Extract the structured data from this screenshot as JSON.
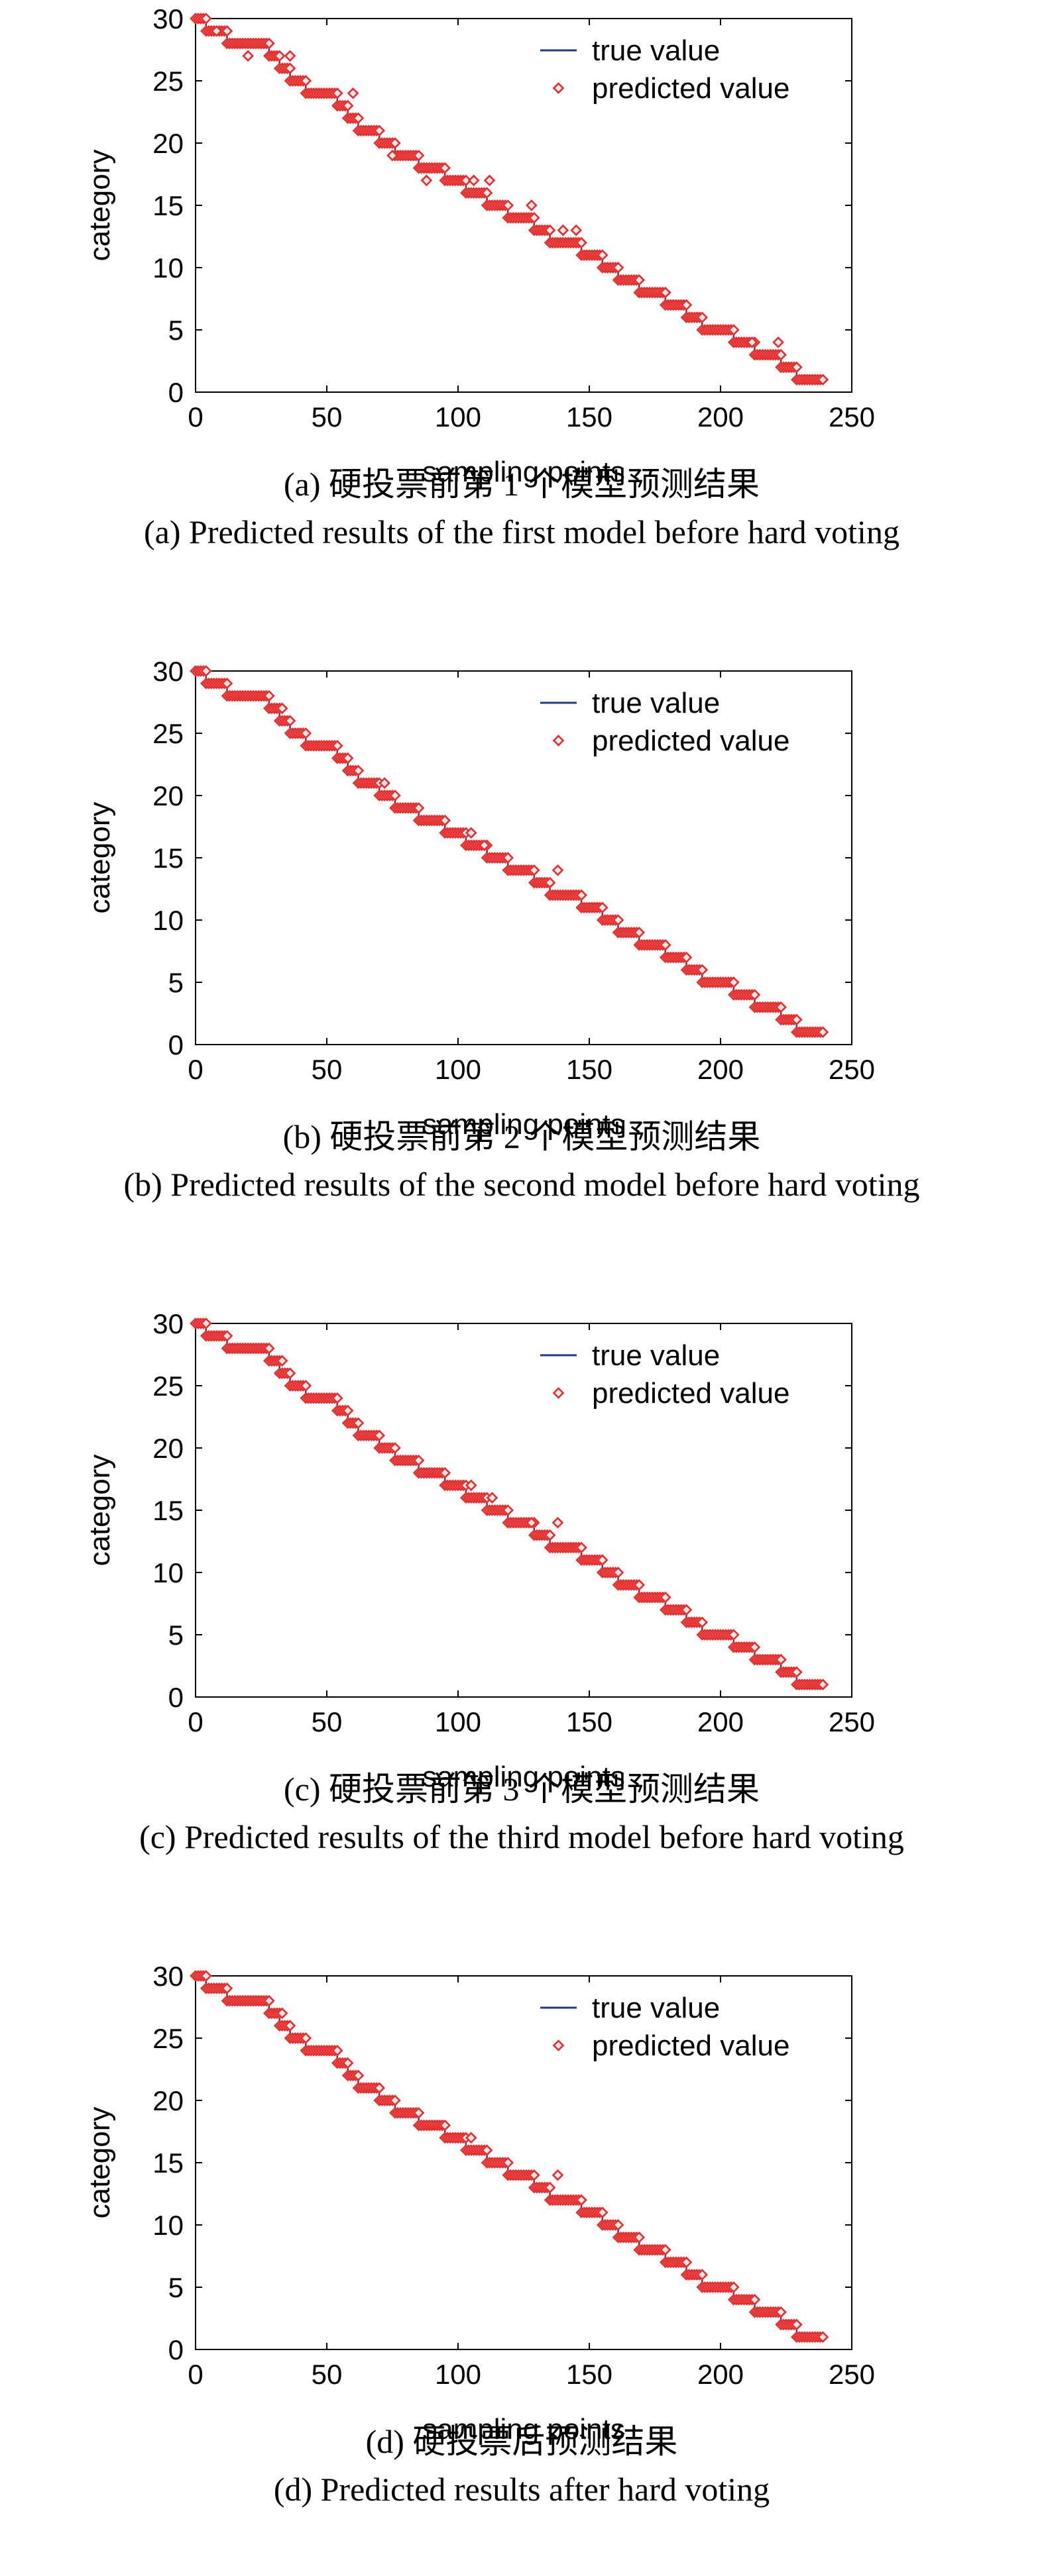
{
  "chart_data": [
    {
      "type": "scatter",
      "xlabel": "sampling points",
      "ylabel": "category",
      "xlim": [
        0,
        250
      ],
      "ylim": [
        0,
        30
      ],
      "xticks": [
        0,
        50,
        100,
        150,
        200,
        250
      ],
      "yticks": [
        0,
        5,
        10,
        15,
        20,
        25,
        30
      ],
      "legend_position": "top-right",
      "caption_cn": "(a) 硬投票前第 1 个模型预测结果",
      "caption_en": "(a) Predicted results of the first model before hard voting",
      "series": [
        {
          "name": "true value",
          "kind": "line",
          "color": "#1f3a8a"
        },
        {
          "name": "predicted value",
          "kind": "marker",
          "marker": "diamond",
          "color": "#e52d2d"
        }
      ],
      "true_value": {
        "segments": [
          [
            0,
            30,
            4
          ],
          [
            4,
            29,
            8
          ],
          [
            12,
            28,
            16
          ],
          [
            28,
            27,
            4
          ],
          [
            32,
            26,
            4
          ],
          [
            36,
            25,
            6
          ],
          [
            42,
            24,
            12
          ],
          [
            54,
            23,
            4
          ],
          [
            58,
            22,
            4
          ],
          [
            62,
            21,
            8
          ],
          [
            70,
            20,
            6
          ],
          [
            76,
            19,
            9
          ],
          [
            85,
            18,
            10
          ],
          [
            95,
            17,
            8
          ],
          [
            103,
            16,
            8
          ],
          [
            111,
            15,
            8
          ],
          [
            119,
            14,
            10
          ],
          [
            129,
            13,
            6
          ],
          [
            135,
            12,
            12
          ],
          [
            147,
            11,
            8
          ],
          [
            155,
            10,
            6
          ],
          [
            161,
            9,
            8
          ],
          [
            169,
            8,
            10
          ],
          [
            179,
            7,
            8
          ],
          [
            187,
            6,
            6
          ],
          [
            193,
            5,
            12
          ],
          [
            205,
            4,
            8
          ],
          [
            213,
            3,
            10
          ],
          [
            223,
            2,
            6
          ],
          [
            229,
            1,
            10
          ]
        ]
      },
      "predicted_outliers": [
        [
          8,
          29
        ],
        [
          20,
          27
        ],
        [
          36,
          27
        ],
        [
          60,
          24
        ],
        [
          75,
          19
        ],
        [
          88,
          17
        ],
        [
          106,
          17
        ],
        [
          112,
          17
        ],
        [
          128,
          15
        ],
        [
          140,
          13
        ],
        [
          145,
          13
        ],
        [
          212,
          4
        ],
        [
          222,
          4
        ]
      ]
    },
    {
      "type": "scatter",
      "xlabel": "sampling points",
      "ylabel": "category",
      "xlim": [
        0,
        250
      ],
      "ylim": [
        0,
        30
      ],
      "xticks": [
        0,
        50,
        100,
        150,
        200,
        250
      ],
      "yticks": [
        0,
        5,
        10,
        15,
        20,
        25,
        30
      ],
      "legend_position": "top-right",
      "caption_cn": "(b) 硬投票前第 2 个模型预测结果",
      "caption_en": "(b) Predicted results of the second model before hard voting",
      "series": [
        {
          "name": "true value",
          "kind": "line",
          "color": "#1f3a8a"
        },
        {
          "name": "predicted value",
          "kind": "marker",
          "marker": "diamond",
          "color": "#e52d2d"
        }
      ],
      "true_value": {
        "segments": [
          [
            0,
            30,
            4
          ],
          [
            4,
            29,
            8
          ],
          [
            12,
            28,
            16
          ],
          [
            28,
            27,
            4
          ],
          [
            32,
            26,
            4
          ],
          [
            36,
            25,
            6
          ],
          [
            42,
            24,
            12
          ],
          [
            54,
            23,
            4
          ],
          [
            58,
            22,
            4
          ],
          [
            62,
            21,
            8
          ],
          [
            70,
            20,
            6
          ],
          [
            76,
            19,
            9
          ],
          [
            85,
            18,
            10
          ],
          [
            95,
            17,
            8
          ],
          [
            103,
            16,
            8
          ],
          [
            111,
            15,
            8
          ],
          [
            119,
            14,
            10
          ],
          [
            129,
            13,
            6
          ],
          [
            135,
            12,
            12
          ],
          [
            147,
            11,
            8
          ],
          [
            155,
            10,
            6
          ],
          [
            161,
            9,
            8
          ],
          [
            169,
            8,
            10
          ],
          [
            179,
            7,
            8
          ],
          [
            187,
            6,
            6
          ],
          [
            193,
            5,
            12
          ],
          [
            205,
            4,
            8
          ],
          [
            213,
            3,
            10
          ],
          [
            223,
            2,
            6
          ],
          [
            229,
            1,
            10
          ]
        ]
      },
      "predicted_outliers": [
        [
          33,
          27
        ],
        [
          72,
          21
        ],
        [
          105,
          17
        ],
        [
          110,
          16
        ],
        [
          138,
          14
        ]
      ]
    },
    {
      "type": "scatter",
      "xlabel": "sampling points",
      "ylabel": "category",
      "xlim": [
        0,
        250
      ],
      "ylim": [
        0,
        30
      ],
      "xticks": [
        0,
        50,
        100,
        150,
        200,
        250
      ],
      "yticks": [
        0,
        5,
        10,
        15,
        20,
        25,
        30
      ],
      "legend_position": "top-right",
      "caption_cn": "(c) 硬投票前第 3 个模型预测结果",
      "caption_en": "(c) Predicted results of the third model before hard voting",
      "series": [
        {
          "name": "true value",
          "kind": "line",
          "color": "#1f3a8a"
        },
        {
          "name": "predicted value",
          "kind": "marker",
          "marker": "diamond",
          "color": "#e52d2d"
        }
      ],
      "true_value": {
        "segments": [
          [
            0,
            30,
            4
          ],
          [
            4,
            29,
            8
          ],
          [
            12,
            28,
            16
          ],
          [
            28,
            27,
            4
          ],
          [
            32,
            26,
            4
          ],
          [
            36,
            25,
            6
          ],
          [
            42,
            24,
            12
          ],
          [
            54,
            23,
            4
          ],
          [
            58,
            22,
            4
          ],
          [
            62,
            21,
            8
          ],
          [
            70,
            20,
            6
          ],
          [
            76,
            19,
            9
          ],
          [
            85,
            18,
            10
          ],
          [
            95,
            17,
            8
          ],
          [
            103,
            16,
            8
          ],
          [
            111,
            15,
            8
          ],
          [
            119,
            14,
            10
          ],
          [
            129,
            13,
            6
          ],
          [
            135,
            12,
            12
          ],
          [
            147,
            11,
            8
          ],
          [
            155,
            10,
            6
          ],
          [
            161,
            9,
            8
          ],
          [
            169,
            8,
            10
          ],
          [
            179,
            7,
            8
          ],
          [
            187,
            6,
            6
          ],
          [
            193,
            5,
            12
          ],
          [
            205,
            4,
            8
          ],
          [
            213,
            3,
            10
          ],
          [
            223,
            2,
            6
          ],
          [
            229,
            1,
            10
          ]
        ]
      },
      "predicted_outliers": [
        [
          33,
          27
        ],
        [
          105,
          17
        ],
        [
          113,
          16
        ],
        [
          128,
          14
        ],
        [
          138,
          14
        ]
      ]
    },
    {
      "type": "scatter",
      "xlabel": "sampling points",
      "ylabel": "category",
      "xlim": [
        0,
        250
      ],
      "ylim": [
        0,
        30
      ],
      "xticks": [
        0,
        50,
        100,
        150,
        200,
        250
      ],
      "yticks": [
        0,
        5,
        10,
        15,
        20,
        25,
        30
      ],
      "legend_position": "top-right",
      "caption_cn": "(d) 硬投票后预测结果",
      "caption_en": "(d) Predicted results after hard voting",
      "series": [
        {
          "name": "true value",
          "kind": "line",
          "color": "#1f3a8a"
        },
        {
          "name": "predicted value",
          "kind": "marker",
          "marker": "diamond",
          "color": "#e52d2d"
        }
      ],
      "true_value": {
        "segments": [
          [
            0,
            30,
            4
          ],
          [
            4,
            29,
            8
          ],
          [
            12,
            28,
            16
          ],
          [
            28,
            27,
            4
          ],
          [
            32,
            26,
            4
          ],
          [
            36,
            25,
            6
          ],
          [
            42,
            24,
            12
          ],
          [
            54,
            23,
            4
          ],
          [
            58,
            22,
            4
          ],
          [
            62,
            21,
            8
          ],
          [
            70,
            20,
            6
          ],
          [
            76,
            19,
            9
          ],
          [
            85,
            18,
            10
          ],
          [
            95,
            17,
            8
          ],
          [
            103,
            16,
            8
          ],
          [
            111,
            15,
            8
          ],
          [
            119,
            14,
            10
          ],
          [
            129,
            13,
            6
          ],
          [
            135,
            12,
            12
          ],
          [
            147,
            11,
            8
          ],
          [
            155,
            10,
            6
          ],
          [
            161,
            9,
            8
          ],
          [
            169,
            8,
            10
          ],
          [
            179,
            7,
            8
          ],
          [
            187,
            6,
            6
          ],
          [
            193,
            5,
            12
          ],
          [
            205,
            4,
            8
          ],
          [
            213,
            3,
            10
          ],
          [
            223,
            2,
            6
          ],
          [
            229,
            1,
            10
          ]
        ]
      },
      "predicted_outliers": [
        [
          33,
          27
        ],
        [
          105,
          17
        ],
        [
          138,
          14
        ]
      ]
    }
  ]
}
